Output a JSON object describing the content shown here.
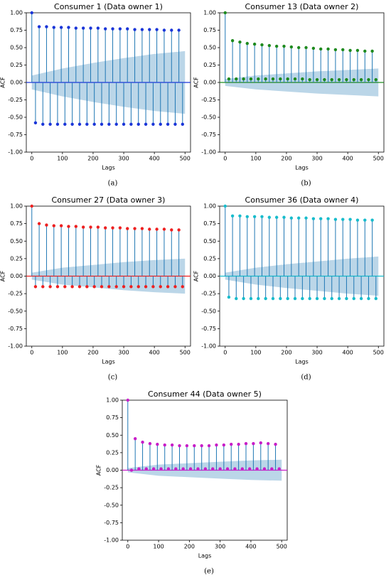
{
  "chart_data": [
    {
      "type": "stem",
      "title": "Consumer 1 (Data owner 1)",
      "xlabel": "Lags",
      "ylabel": "ACF",
      "caption": "(a)",
      "color": "#1a35d8",
      "x": [
        0,
        12,
        24,
        36,
        48,
        60,
        72,
        84,
        96,
        108,
        120,
        132,
        144,
        156,
        168,
        180,
        192,
        204,
        216,
        228,
        240,
        252,
        264,
        276,
        288,
        300,
        312,
        324,
        336,
        348,
        360,
        372,
        384,
        396,
        408,
        420,
        432,
        444,
        456,
        468,
        480,
        492
      ],
      "values": [
        1.0,
        -0.58,
        0.8,
        -0.6,
        0.8,
        -0.6,
        0.79,
        -0.6,
        0.79,
        -0.6,
        0.79,
        -0.6,
        0.78,
        -0.6,
        0.78,
        -0.6,
        0.78,
        -0.6,
        0.78,
        -0.6,
        0.77,
        -0.6,
        0.77,
        -0.6,
        0.77,
        -0.6,
        0.77,
        -0.6,
        0.76,
        -0.6,
        0.76,
        -0.6,
        0.76,
        -0.6,
        0.76,
        -0.6,
        0.75,
        -0.6,
        0.75,
        -0.6,
        0.75,
        -0.6
      ],
      "band_x": [
        0,
        100,
        200,
        300,
        400,
        500
      ],
      "band": [
        0.1,
        0.2,
        0.28,
        0.35,
        0.41,
        0.45
      ],
      "xlim": [
        -18,
        518
      ],
      "ylim": [
        -1,
        1
      ],
      "xticks": [
        0,
        100,
        200,
        300,
        400,
        500
      ],
      "yticks": [
        {
          "value": -1,
          "label": "-1.00"
        },
        {
          "value": -0.75,
          "label": "-0.75"
        },
        {
          "value": -0.5,
          "label": "-0.50"
        },
        {
          "value": -0.25,
          "label": "-0.25"
        },
        {
          "value": 0,
          "label": "0.00"
        },
        {
          "value": 0.25,
          "label": "0.25"
        },
        {
          "value": 0.5,
          "label": "0.50"
        },
        {
          "value": 0.75,
          "label": "0.75"
        },
        {
          "value": 1,
          "label": "1.00"
        }
      ]
    },
    {
      "type": "stem",
      "title": "Consumer 13 (Data owner 2)",
      "xlabel": "Lags",
      "ylabel": "ACF",
      "caption": "(b)",
      "color": "#1e8a1e",
      "x": [
        0,
        12,
        24,
        36,
        48,
        60,
        72,
        84,
        96,
        108,
        120,
        132,
        144,
        156,
        168,
        180,
        192,
        204,
        216,
        228,
        240,
        252,
        264,
        276,
        288,
        300,
        312,
        324,
        336,
        348,
        360,
        372,
        384,
        396,
        408,
        420,
        432,
        444,
        456,
        468,
        480,
        492
      ],
      "values": [
        1.0,
        0.05,
        0.6,
        0.05,
        0.58,
        0.05,
        0.56,
        0.05,
        0.55,
        0.05,
        0.54,
        0.05,
        0.53,
        0.05,
        0.52,
        0.05,
        0.52,
        0.05,
        0.51,
        0.05,
        0.5,
        0.05,
        0.5,
        0.04,
        0.49,
        0.04,
        0.48,
        0.04,
        0.48,
        0.04,
        0.47,
        0.04,
        0.47,
        0.04,
        0.46,
        0.04,
        0.46,
        0.04,
        0.45,
        0.04,
        0.45,
        0.04
      ],
      "band_x": [
        0,
        100,
        200,
        300,
        400,
        500
      ],
      "band": [
        0.05,
        0.1,
        0.13,
        0.16,
        0.18,
        0.2
      ],
      "xlim": [
        -18,
        518
      ],
      "ylim": [
        -1,
        1
      ],
      "xticks": [
        0,
        100,
        200,
        300,
        400,
        500
      ],
      "yticks": [
        {
          "value": -1,
          "label": "-1.00"
        },
        {
          "value": -0.75,
          "label": "-0.75"
        },
        {
          "value": -0.5,
          "label": "-0.50"
        },
        {
          "value": -0.25,
          "label": "-0.25"
        },
        {
          "value": 0,
          "label": "0.00"
        },
        {
          "value": 0.25,
          "label": "0.25"
        },
        {
          "value": 0.5,
          "label": "0.50"
        },
        {
          "value": 0.75,
          "label": "0.75"
        },
        {
          "value": 1,
          "label": "1.00"
        }
      ]
    },
    {
      "type": "stem",
      "title": "Consumer 27 (Data owner 3)",
      "xlabel": "Lags",
      "ylabel": "ACF",
      "caption": "(c)",
      "color": "#ee2020",
      "x": [
        0,
        12,
        24,
        36,
        48,
        60,
        72,
        84,
        96,
        108,
        120,
        132,
        144,
        156,
        168,
        180,
        192,
        204,
        216,
        228,
        240,
        252,
        264,
        276,
        288,
        300,
        312,
        324,
        336,
        348,
        360,
        372,
        384,
        396,
        408,
        420,
        432,
        444,
        456,
        468,
        480,
        492
      ],
      "values": [
        1.0,
        -0.15,
        0.75,
        -0.15,
        0.73,
        -0.15,
        0.72,
        -0.15,
        0.72,
        -0.15,
        0.71,
        -0.15,
        0.71,
        -0.15,
        0.7,
        -0.15,
        0.7,
        -0.15,
        0.7,
        -0.15,
        0.69,
        -0.15,
        0.69,
        -0.15,
        0.69,
        -0.15,
        0.68,
        -0.15,
        0.68,
        -0.15,
        0.68,
        -0.15,
        0.67,
        -0.15,
        0.67,
        -0.15,
        0.67,
        -0.15,
        0.66,
        -0.15,
        0.66,
        -0.15
      ],
      "band_x": [
        0,
        100,
        200,
        300,
        400,
        500
      ],
      "band": [
        0.05,
        0.12,
        0.16,
        0.2,
        0.23,
        0.25
      ],
      "xlim": [
        -18,
        518
      ],
      "ylim": [
        -1,
        1
      ],
      "xticks": [
        0,
        100,
        200,
        300,
        400,
        500
      ],
      "yticks": [
        {
          "value": -1,
          "label": "-1.00"
        },
        {
          "value": -0.75,
          "label": "-0.75"
        },
        {
          "value": -0.5,
          "label": "-0.50"
        },
        {
          "value": -0.25,
          "label": "-0.25"
        },
        {
          "value": 0,
          "label": "0.00"
        },
        {
          "value": 0.25,
          "label": "0.25"
        },
        {
          "value": 0.5,
          "label": "0.50"
        },
        {
          "value": 0.75,
          "label": "0.75"
        },
        {
          "value": 1,
          "label": "1.00"
        }
      ]
    },
    {
      "type": "stem",
      "title": "Consumer 36 (Data owner 4)",
      "xlabel": "Lags",
      "ylabel": "ACF",
      "caption": "(d)",
      "color": "#17bccc",
      "x": [
        0,
        12,
        24,
        36,
        48,
        60,
        72,
        84,
        96,
        108,
        120,
        132,
        144,
        156,
        168,
        180,
        192,
        204,
        216,
        228,
        240,
        252,
        264,
        276,
        288,
        300,
        312,
        324,
        336,
        348,
        360,
        372,
        384,
        396,
        408,
        420,
        432,
        444,
        456,
        468,
        480,
        492
      ],
      "values": [
        1.0,
        -0.3,
        0.86,
        -0.32,
        0.86,
        -0.32,
        0.85,
        -0.32,
        0.85,
        -0.32,
        0.85,
        -0.32,
        0.84,
        -0.32,
        0.84,
        -0.32,
        0.84,
        -0.32,
        0.83,
        -0.32,
        0.83,
        -0.32,
        0.83,
        -0.32,
        0.82,
        -0.32,
        0.82,
        -0.32,
        0.82,
        -0.32,
        0.81,
        -0.32,
        0.81,
        -0.32,
        0.81,
        -0.32,
        0.8,
        -0.32,
        0.8,
        -0.32,
        0.8,
        -0.32
      ],
      "band_x": [
        0,
        100,
        200,
        300,
        400,
        500
      ],
      "band": [
        0.05,
        0.12,
        0.17,
        0.21,
        0.25,
        0.28
      ],
      "xlim": [
        -18,
        518
      ],
      "ylim": [
        -1,
        1
      ],
      "xticks": [
        0,
        100,
        200,
        300,
        400,
        500
      ],
      "yticks": [
        {
          "value": -1,
          "label": "-1.00"
        },
        {
          "value": -0.75,
          "label": "-0.75"
        },
        {
          "value": -0.5,
          "label": "-0.50"
        },
        {
          "value": -0.25,
          "label": "-0.25"
        },
        {
          "value": 0,
          "label": "0.00"
        },
        {
          "value": 0.25,
          "label": "0.25"
        },
        {
          "value": 0.5,
          "label": "0.50"
        },
        {
          "value": 0.75,
          "label": "0.75"
        },
        {
          "value": 1,
          "label": "1.00"
        }
      ]
    },
    {
      "type": "stem",
      "title": "Consumer 44 (Data owner 5)",
      "xlabel": "Lags",
      "ylabel": "ACF",
      "caption": "(e)",
      "color": "#c81ec8",
      "x": [
        0,
        12,
        24,
        36,
        48,
        60,
        72,
        84,
        96,
        108,
        120,
        132,
        144,
        156,
        168,
        180,
        192,
        204,
        216,
        228,
        240,
        252,
        264,
        276,
        288,
        300,
        312,
        324,
        336,
        348,
        360,
        372,
        384,
        396,
        408,
        420,
        432,
        444,
        456,
        468,
        480,
        492
      ],
      "values": [
        1.0,
        0.0,
        0.45,
        0.02,
        0.4,
        0.02,
        0.38,
        0.02,
        0.37,
        0.02,
        0.36,
        0.02,
        0.36,
        0.02,
        0.35,
        0.02,
        0.35,
        0.02,
        0.35,
        0.02,
        0.35,
        0.02,
        0.35,
        0.02,
        0.36,
        0.02,
        0.36,
        0.02,
        0.37,
        0.02,
        0.37,
        0.02,
        0.38,
        0.02,
        0.38,
        0.02,
        0.39,
        0.02,
        0.38,
        0.02,
        0.37,
        0.02
      ],
      "band_x": [
        0,
        100,
        200,
        300,
        400,
        500
      ],
      "band": [
        0.03,
        0.08,
        0.1,
        0.12,
        0.14,
        0.15
      ],
      "xlim": [
        -18,
        518
      ],
      "ylim": [
        -1,
        1
      ],
      "xticks": [
        0,
        100,
        200,
        300,
        400,
        500
      ],
      "yticks": [
        {
          "value": -1,
          "label": "-1.00"
        },
        {
          "value": -0.75,
          "label": "-0.75"
        },
        {
          "value": -0.5,
          "label": "-0.50"
        },
        {
          "value": -0.25,
          "label": "-0.25"
        },
        {
          "value": 0,
          "label": "0.00"
        },
        {
          "value": 0.25,
          "label": "0.25"
        },
        {
          "value": 0.5,
          "label": "0.50"
        },
        {
          "value": 0.75,
          "label": "0.75"
        },
        {
          "value": 1,
          "label": "1.00"
        }
      ]
    }
  ]
}
